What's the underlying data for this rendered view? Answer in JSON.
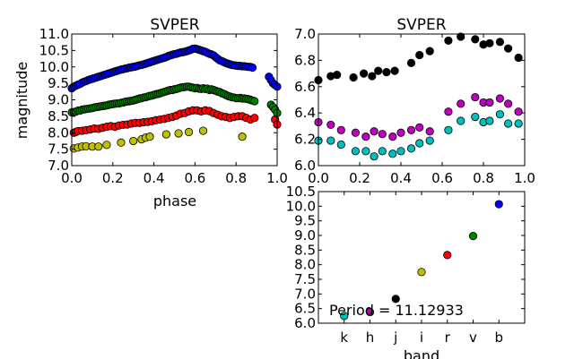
{
  "colors": {
    "k": "#00bfbf",
    "h": "#bf00bf",
    "j": "#000000",
    "i": "#bfbf00",
    "r": "#ff0000",
    "v": "#008000",
    "b": "#0000ff"
  },
  "chart_data": [
    {
      "id": "panel-left",
      "type": "scatter",
      "title": "SVPER",
      "xlabel": "phase",
      "ylabel": "magnitude",
      "xlim": [
        0.0,
        1.0
      ],
      "ylim": [
        11.0,
        7.0
      ],
      "y_inverted": true,
      "xticks": [
        "0.0",
        "0.2",
        "0.4",
        "0.6",
        "0.8",
        "1.0"
      ],
      "yticks": [
        "7.0",
        "7.5",
        "8.0",
        "8.5",
        "9.0",
        "9.5",
        "10.0",
        "10.5",
        "11.0"
      ],
      "series": [
        {
          "band": "i",
          "color": "#bfbf00",
          "x": [
            0.01,
            0.03,
            0.05,
            0.07,
            0.1,
            0.13,
            0.17,
            0.24,
            0.3,
            0.34,
            0.36,
            0.38,
            0.46,
            0.52,
            0.57,
            0.64,
            0.83
          ],
          "y": [
            7.52,
            7.55,
            7.58,
            7.59,
            7.58,
            7.58,
            7.63,
            7.7,
            7.75,
            7.8,
            7.85,
            7.88,
            7.95,
            7.98,
            8.02,
            8.06,
            7.88
          ]
        },
        {
          "band": "r",
          "color": "#ff0000",
          "x": [
            0.01,
            0.02,
            0.03,
            0.05,
            0.07,
            0.09,
            0.11,
            0.13,
            0.15,
            0.17,
            0.19,
            0.21,
            0.23,
            0.25,
            0.27,
            0.29,
            0.31,
            0.33,
            0.35,
            0.37,
            0.39,
            0.41,
            0.43,
            0.45,
            0.47,
            0.49,
            0.51,
            0.53,
            0.55,
            0.57,
            0.59,
            0.61,
            0.63,
            0.65,
            0.67,
            0.69,
            0.71,
            0.73,
            0.75,
            0.77,
            0.79,
            0.81,
            0.83,
            0.85,
            0.87,
            0.89,
            0.99,
            1.0
          ],
          "y": [
            8.0,
            8.02,
            8.05,
            8.06,
            8.08,
            8.1,
            8.13,
            8.12,
            8.15,
            8.18,
            8.2,
            8.18,
            8.22,
            8.24,
            8.25,
            8.28,
            8.3,
            8.3,
            8.32,
            8.33,
            8.35,
            8.38,
            8.4,
            8.42,
            8.45,
            8.48,
            8.52,
            8.58,
            8.6,
            8.65,
            8.68,
            8.68,
            8.65,
            8.68,
            8.66,
            8.6,
            8.55,
            8.5,
            8.48,
            8.45,
            8.48,
            8.5,
            8.5,
            8.45,
            8.4,
            8.45,
            8.4,
            8.25
          ]
        },
        {
          "band": "v",
          "color": "#008000",
          "x": [
            0.0,
            0.01,
            0.02,
            0.03,
            0.04,
            0.05,
            0.06,
            0.07,
            0.08,
            0.09,
            0.1,
            0.11,
            0.12,
            0.13,
            0.14,
            0.15,
            0.16,
            0.17,
            0.18,
            0.19,
            0.2,
            0.21,
            0.22,
            0.23,
            0.24,
            0.25,
            0.26,
            0.27,
            0.28,
            0.29,
            0.3,
            0.31,
            0.32,
            0.33,
            0.34,
            0.35,
            0.36,
            0.37,
            0.38,
            0.39,
            0.4,
            0.41,
            0.42,
            0.43,
            0.44,
            0.45,
            0.46,
            0.47,
            0.48,
            0.49,
            0.5,
            0.51,
            0.52,
            0.53,
            0.54,
            0.55,
            0.56,
            0.57,
            0.58,
            0.59,
            0.6,
            0.61,
            0.62,
            0.63,
            0.64,
            0.65,
            0.66,
            0.67,
            0.68,
            0.69,
            0.7,
            0.71,
            0.72,
            0.73,
            0.74,
            0.75,
            0.76,
            0.77,
            0.78,
            0.79,
            0.8,
            0.81,
            0.82,
            0.83,
            0.84,
            0.85,
            0.86,
            0.87,
            0.88,
            0.89,
            0.97,
            0.98,
            0.99,
            1.0
          ],
          "y": [
            8.62,
            8.63,
            8.64,
            8.67,
            8.67,
            8.7,
            8.71,
            8.72,
            8.73,
            8.74,
            8.75,
            8.77,
            8.78,
            8.79,
            8.8,
            8.81,
            8.82,
            8.83,
            8.85,
            8.86,
            8.87,
            8.88,
            8.89,
            8.89,
            8.91,
            8.92,
            8.94,
            8.95,
            8.96,
            8.97,
            8.98,
            9.0,
            9.02,
            9.04,
            9.05,
            9.07,
            9.08,
            9.1,
            9.12,
            9.13,
            9.15,
            9.17,
            9.18,
            9.2,
            9.22,
            9.24,
            9.26,
            9.28,
            9.3,
            9.3,
            9.32,
            9.33,
            9.35,
            9.37,
            9.38,
            9.39,
            9.4,
            9.4,
            9.38,
            9.37,
            9.35,
            9.36,
            9.34,
            9.33,
            9.35,
            9.33,
            9.34,
            9.3,
            9.32,
            9.3,
            9.28,
            9.25,
            9.24,
            9.2,
            9.18,
            9.15,
            9.12,
            9.1,
            9.08,
            9.07,
            9.05,
            9.05,
            9.06,
            9.04,
            9.04,
            9.03,
            9.02,
            9.0,
            8.98,
            8.96,
            8.85,
            8.78,
            8.7,
            8.6
          ]
        },
        {
          "band": "b",
          "color": "#0000ff",
          "x": [
            0.0,
            0.01,
            0.02,
            0.03,
            0.04,
            0.05,
            0.06,
            0.07,
            0.08,
            0.09,
            0.1,
            0.11,
            0.12,
            0.13,
            0.14,
            0.15,
            0.16,
            0.17,
            0.18,
            0.19,
            0.2,
            0.21,
            0.22,
            0.23,
            0.24,
            0.25,
            0.26,
            0.27,
            0.28,
            0.29,
            0.3,
            0.31,
            0.32,
            0.33,
            0.34,
            0.35,
            0.36,
            0.37,
            0.38,
            0.39,
            0.4,
            0.41,
            0.42,
            0.43,
            0.44,
            0.45,
            0.46,
            0.47,
            0.48,
            0.49,
            0.5,
            0.51,
            0.52,
            0.53,
            0.54,
            0.55,
            0.56,
            0.57,
            0.58,
            0.59,
            0.6,
            0.61,
            0.62,
            0.63,
            0.64,
            0.65,
            0.66,
            0.67,
            0.68,
            0.69,
            0.7,
            0.71,
            0.72,
            0.73,
            0.74,
            0.75,
            0.76,
            0.77,
            0.78,
            0.79,
            0.8,
            0.81,
            0.82,
            0.83,
            0.84,
            0.85,
            0.86,
            0.87,
            0.88,
            0.96,
            0.97,
            0.98,
            0.99,
            1.0
          ],
          "y": [
            9.35,
            9.4,
            9.43,
            9.46,
            9.48,
            9.52,
            9.55,
            9.57,
            9.6,
            9.62,
            9.64,
            9.66,
            9.68,
            9.7,
            9.72,
            9.74,
            9.76,
            9.78,
            9.8,
            9.82,
            9.84,
            9.86,
            9.88,
            9.9,
            9.92,
            9.93,
            9.95,
            9.96,
            9.98,
            9.99,
            10.0,
            10.01,
            10.03,
            10.05,
            10.06,
            10.08,
            10.1,
            10.12,
            10.14,
            10.16,
            10.18,
            10.2,
            10.22,
            10.24,
            10.26,
            10.28,
            10.3,
            10.33,
            10.35,
            10.37,
            10.39,
            10.4,
            10.42,
            10.44,
            10.45,
            10.46,
            10.48,
            10.5,
            10.52,
            10.55,
            10.56,
            10.54,
            10.52,
            10.5,
            10.48,
            10.46,
            10.43,
            10.4,
            10.38,
            10.35,
            10.3,
            10.25,
            10.2,
            10.18,
            10.15,
            10.12,
            10.1,
            10.08,
            10.06,
            10.05,
            10.04,
            10.03,
            10.03,
            10.02,
            10.02,
            10.01,
            10.0,
            10.0,
            9.98,
            9.7,
            9.6,
            9.5,
            9.45,
            9.4
          ]
        }
      ]
    },
    {
      "id": "panel-right-top",
      "type": "scatter",
      "title": "SVPER",
      "xlim": [
        0.0,
        1.0
      ],
      "ylim": [
        7.0,
        6.0
      ],
      "y_inverted": true,
      "xticks": [
        "0.0",
        "0.2",
        "0.4",
        "0.6",
        "0.8",
        "1.0"
      ],
      "yticks": [
        "6.0",
        "6.2",
        "6.4",
        "6.6",
        "6.8",
        "7.0"
      ],
      "series": [
        {
          "band": "k",
          "color": "#00bfbf",
          "x": [
            0.0,
            0.06,
            0.11,
            0.18,
            0.23,
            0.27,
            0.31,
            0.36,
            0.4,
            0.45,
            0.49,
            0.54,
            0.63,
            0.69,
            0.76,
            0.8,
            0.83,
            0.88,
            0.92,
            0.97
          ],
          "y": [
            6.19,
            6.19,
            6.16,
            6.11,
            6.11,
            6.07,
            6.11,
            6.09,
            6.11,
            6.13,
            6.17,
            6.19,
            6.27,
            6.34,
            6.37,
            6.33,
            6.34,
            6.39,
            6.32,
            6.32
          ]
        },
        {
          "band": "h",
          "color": "#bf00bf",
          "x": [
            0.0,
            0.06,
            0.11,
            0.18,
            0.23,
            0.27,
            0.31,
            0.36,
            0.4,
            0.45,
            0.49,
            0.54,
            0.63,
            0.69,
            0.76,
            0.8,
            0.83,
            0.88,
            0.92,
            0.97
          ],
          "y": [
            6.33,
            6.31,
            6.27,
            6.25,
            6.22,
            6.26,
            6.24,
            6.22,
            6.25,
            6.27,
            6.29,
            6.26,
            6.41,
            6.47,
            6.52,
            6.48,
            6.48,
            6.51,
            6.47,
            6.41
          ]
        },
        {
          "band": "j",
          "color": "#000000",
          "x": [
            0.0,
            0.06,
            0.09,
            0.17,
            0.22,
            0.26,
            0.29,
            0.33,
            0.37,
            0.45,
            0.49,
            0.54,
            0.63,
            0.69,
            0.76,
            0.8,
            0.83,
            0.88,
            0.92,
            0.97
          ],
          "y": [
            6.65,
            6.68,
            6.69,
            6.67,
            6.7,
            6.68,
            6.72,
            6.71,
            6.72,
            6.78,
            6.84,
            6.87,
            6.95,
            6.98,
            6.96,
            6.92,
            6.93,
            6.94,
            6.89,
            6.82
          ]
        }
      ]
    },
    {
      "id": "panel-right-bottom",
      "type": "scatter",
      "xlabel": "band",
      "categories": [
        "k",
        "h",
        "j",
        "i",
        "r",
        "v",
        "b"
      ],
      "ylim": [
        10.5,
        6.0
      ],
      "y_inverted": true,
      "yticks": [
        "6.0",
        "6.5",
        "7.0",
        "7.5",
        "8.0",
        "8.5",
        "9.0",
        "9.5",
        "10.0",
        "10.5"
      ],
      "values": [
        6.25,
        6.38,
        6.83,
        7.75,
        8.33,
        8.98,
        10.07
      ],
      "annotation": "Period = 11.12933"
    }
  ]
}
